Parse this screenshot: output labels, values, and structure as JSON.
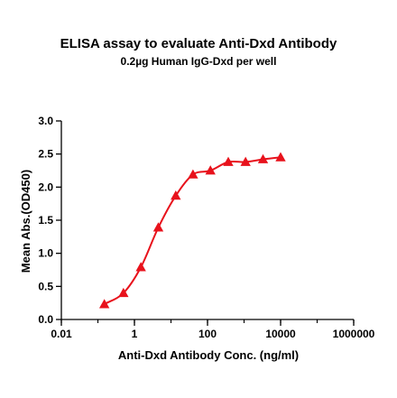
{
  "chart_data": {
    "type": "scatter",
    "title": "ELISA assay to evaluate Anti-Dxd Antibody",
    "subtitle": "0.2µg Human IgG-Dxd per well",
    "xlabel": "Anti-Dxd Antibody Conc. (ng/ml)",
    "ylabel": "Mean Abs.(OD450)",
    "x_scale": "log",
    "xlim": [
      0.01,
      1000000
    ],
    "ylim": [
      0.0,
      3.0
    ],
    "x_ticks": [
      "0.01",
      "1",
      "100",
      "10000",
      "1000000"
    ],
    "y_ticks": [
      "0.0",
      "0.5",
      "1.0",
      "1.5",
      "2.0",
      "2.5",
      "3.0"
    ],
    "grid": false,
    "marker": "triangle",
    "color": "#e8121c",
    "series": [
      {
        "x": [
          0.15,
          0.5,
          1.5,
          4.5,
          13.5,
          40,
          120,
          370,
          1100,
          3300,
          10000
        ],
        "y": [
          0.23,
          0.4,
          0.79,
          1.39,
          1.87,
          2.19,
          2.25,
          2.38,
          2.38,
          2.42,
          2.45
        ]
      }
    ]
  }
}
